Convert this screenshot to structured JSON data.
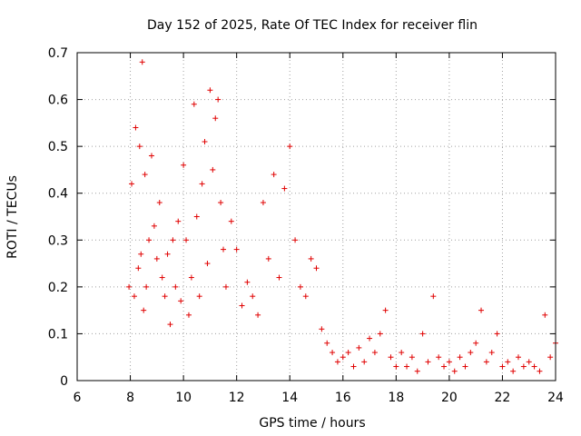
{
  "chart_data": {
    "type": "scatter",
    "title": "Day 152 of 2025, Rate Of TEC Index for receiver flin",
    "xlabel": "GPS time / hours",
    "ylabel": "ROTI / TECUs",
    "xlim": [
      6,
      24
    ],
    "ylim": [
      0,
      0.7
    ],
    "x_ticks": [
      6,
      8,
      10,
      12,
      14,
      16,
      18,
      20,
      22,
      24
    ],
    "y_ticks": [
      0,
      0.1,
      0.2,
      0.3,
      0.4,
      0.5,
      0.6,
      0.7
    ],
    "x_tick_labels": [
      "6",
      "8",
      "10",
      "12",
      "14",
      "16",
      "18",
      "20",
      "22",
      "24"
    ],
    "y_tick_labels": [
      "0",
      "0.1",
      "0.2",
      "0.3",
      "0.4",
      "0.5",
      "0.6",
      "0.7"
    ],
    "grid": true,
    "marker": "+",
    "color": "#e00000",
    "series": [
      {
        "x": [
          7.95,
          8.05,
          8.15,
          8.2,
          8.3,
          8.35,
          8.4,
          8.45,
          8.5,
          8.55,
          8.6,
          8.7,
          8.8,
          8.9,
          9.0,
          9.1,
          9.2,
          9.3,
          9.4,
          9.5,
          9.6,
          9.7,
          9.8,
          9.9,
          10.0,
          10.1,
          10.2,
          10.3,
          10.4,
          10.5,
          10.6,
          10.7,
          10.8,
          10.9,
          11.0,
          11.1,
          11.2,
          11.3,
          11.4,
          11.5,
          11.6,
          11.8,
          12.0,
          12.2,
          12.4,
          12.6,
          12.8,
          13.0,
          13.2,
          13.4,
          13.6,
          13.8,
          14.0,
          14.2,
          14.4,
          14.6,
          14.8,
          15.0,
          15.2,
          15.4,
          15.6,
          15.8,
          16.0,
          16.2,
          16.4,
          16.6,
          16.8,
          17.0,
          17.2,
          17.4,
          17.6,
          17.8,
          18.0,
          18.2,
          18.4,
          18.6,
          18.8,
          19.0,
          19.2,
          19.4,
          19.6,
          19.8,
          20.0,
          20.2,
          20.4,
          20.6,
          20.8,
          21.0,
          21.2,
          21.4,
          21.6,
          21.8,
          22.0,
          22.2,
          22.4,
          22.6,
          22.8,
          23.0,
          23.2,
          23.4,
          23.6,
          23.8,
          24.0
        ],
        "y": [
          0.2,
          0.42,
          0.18,
          0.54,
          0.24,
          0.5,
          0.27,
          0.68,
          0.15,
          0.44,
          0.2,
          0.3,
          0.48,
          0.33,
          0.26,
          0.38,
          0.22,
          0.18,
          0.27,
          0.12,
          0.3,
          0.2,
          0.34,
          0.17,
          0.46,
          0.3,
          0.14,
          0.22,
          0.59,
          0.35,
          0.18,
          0.42,
          0.51,
          0.25,
          0.62,
          0.45,
          0.56,
          0.6,
          0.38,
          0.28,
          0.2,
          0.34,
          0.28,
          0.16,
          0.21,
          0.18,
          0.14,
          0.38,
          0.26,
          0.44,
          0.22,
          0.41,
          0.5,
          0.3,
          0.2,
          0.18,
          0.26,
          0.24,
          0.11,
          0.08,
          0.06,
          0.04,
          0.05,
          0.06,
          0.03,
          0.07,
          0.04,
          0.09,
          0.06,
          0.1,
          0.15,
          0.05,
          0.03,
          0.06,
          0.03,
          0.05,
          0.02,
          0.1,
          0.04,
          0.18,
          0.05,
          0.03,
          0.04,
          0.02,
          0.05,
          0.03,
          0.06,
          0.08,
          0.15,
          0.04,
          0.06,
          0.1,
          0.03,
          0.04,
          0.02,
          0.05,
          0.03,
          0.04,
          0.03,
          0.02,
          0.14,
          0.05,
          0.08
        ]
      }
    ]
  }
}
